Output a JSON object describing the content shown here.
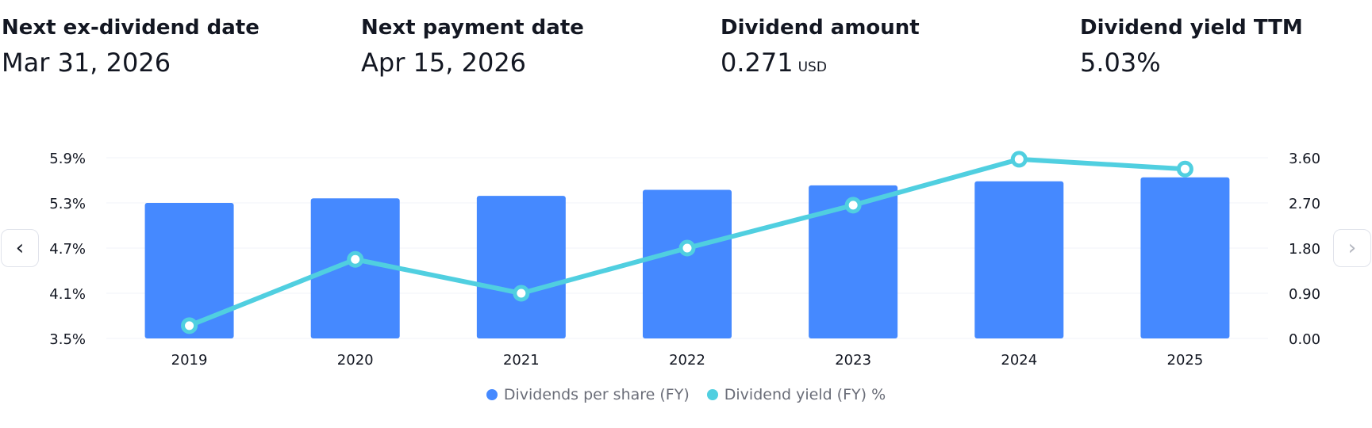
{
  "stats": [
    {
      "label": "Next ex-dividend date",
      "value": "Mar 31, 2026",
      "unit": ""
    },
    {
      "label": "Next payment date",
      "value": "Apr 15, 2026",
      "unit": ""
    },
    {
      "label": "Dividend amount",
      "value": "0.271",
      "unit": "USD"
    },
    {
      "label": "Dividend yield TTM",
      "value": "5.03%",
      "unit": ""
    }
  ],
  "nav": {
    "prev_icon": "chevron-left-icon",
    "next_icon": "chevron-right-icon",
    "prev_glyph": "‹",
    "next_glyph": "›"
  },
  "colors": {
    "bar": "#4589ff",
    "line": "#50cfe0",
    "grid": "#f0f3fa"
  },
  "legend": [
    {
      "label": "Dividends per share (FY)",
      "color": "#4589ff"
    },
    {
      "label": "Dividend yield (FY) %",
      "color": "#50cfe0"
    }
  ],
  "chart_data": {
    "type": "bar",
    "categories": [
      "2019",
      "2020",
      "2021",
      "2022",
      "2023",
      "2024",
      "2025"
    ],
    "series": [
      {
        "name": "Dividends per share (FY)",
        "type": "bar",
        "axis": "right",
        "values": [
          2.7,
          2.79,
          2.84,
          2.96,
          3.05,
          3.13,
          3.21
        ]
      },
      {
        "name": "Dividend yield (FY) %",
        "type": "line",
        "axis": "left",
        "values": [
          3.67,
          4.55,
          4.1,
          4.7,
          5.27,
          5.88,
          5.75
        ]
      }
    ],
    "y_left": {
      "ticks": [
        "5.9%",
        "5.3%",
        "4.7%",
        "4.1%",
        "3.5%"
      ],
      "tick_values": [
        5.9,
        5.3,
        4.7,
        4.1,
        3.5
      ],
      "ylim": [
        3.5,
        5.9
      ]
    },
    "y_right": {
      "ticks": [
        "3.60",
        "2.70",
        "1.80",
        "0.90",
        "0.00"
      ],
      "tick_values": [
        3.6,
        2.7,
        1.8,
        0.9,
        0.0
      ],
      "ylim": [
        0,
        3.6
      ]
    },
    "grid": true,
    "legend_position": "bottom"
  }
}
